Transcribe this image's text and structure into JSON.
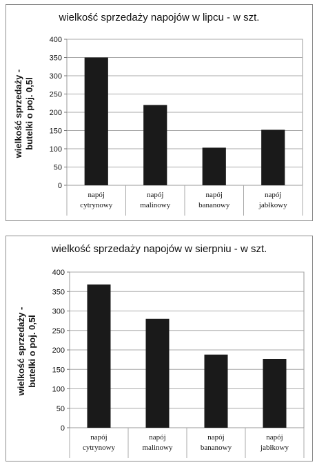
{
  "chart_data": [
    {
      "type": "bar",
      "title": "wielkość sprzedaży  napojów  w lipcu - w szt.",
      "ylabel_lines": [
        "wielkość sprzedaży -",
        "butelki o poj. 0,5l"
      ],
      "xlabel": "",
      "categories": [
        [
          "napój",
          "cytrynowy"
        ],
        [
          "napój",
          "malinowy"
        ],
        [
          "napój",
          "bananowy"
        ],
        [
          "napój",
          "jabłkowy"
        ]
      ],
      "values": [
        350,
        220,
        103,
        152
      ],
      "ylim": [
        0,
        400
      ],
      "yticks": [
        "0",
        "50",
        "100",
        "150",
        "200",
        "250",
        "300",
        "350",
        "400"
      ],
      "grid": true,
      "legend": "none",
      "bar_color": "#1a1a1a"
    },
    {
      "type": "bar",
      "title": "wielkość sprzedaży  napojów  w sierpniu - w szt.",
      "ylabel_lines": [
        "wielkość sprzedaży -",
        "butelki o poj. 0,5l"
      ],
      "xlabel": "",
      "categories": [
        [
          "napój",
          "cytrynowy"
        ],
        [
          "napój",
          "malinowy"
        ],
        [
          "napój",
          "bananowy"
        ],
        [
          "napój",
          "jabłkowy"
        ]
      ],
      "values": [
        368,
        280,
        188,
        177
      ],
      "ylim": [
        0,
        400
      ],
      "yticks": [
        "0",
        "50",
        "100",
        "150",
        "200",
        "250",
        "300",
        "350",
        "400"
      ],
      "grid": true,
      "legend": "none",
      "bar_color": "#1a1a1a"
    }
  ]
}
